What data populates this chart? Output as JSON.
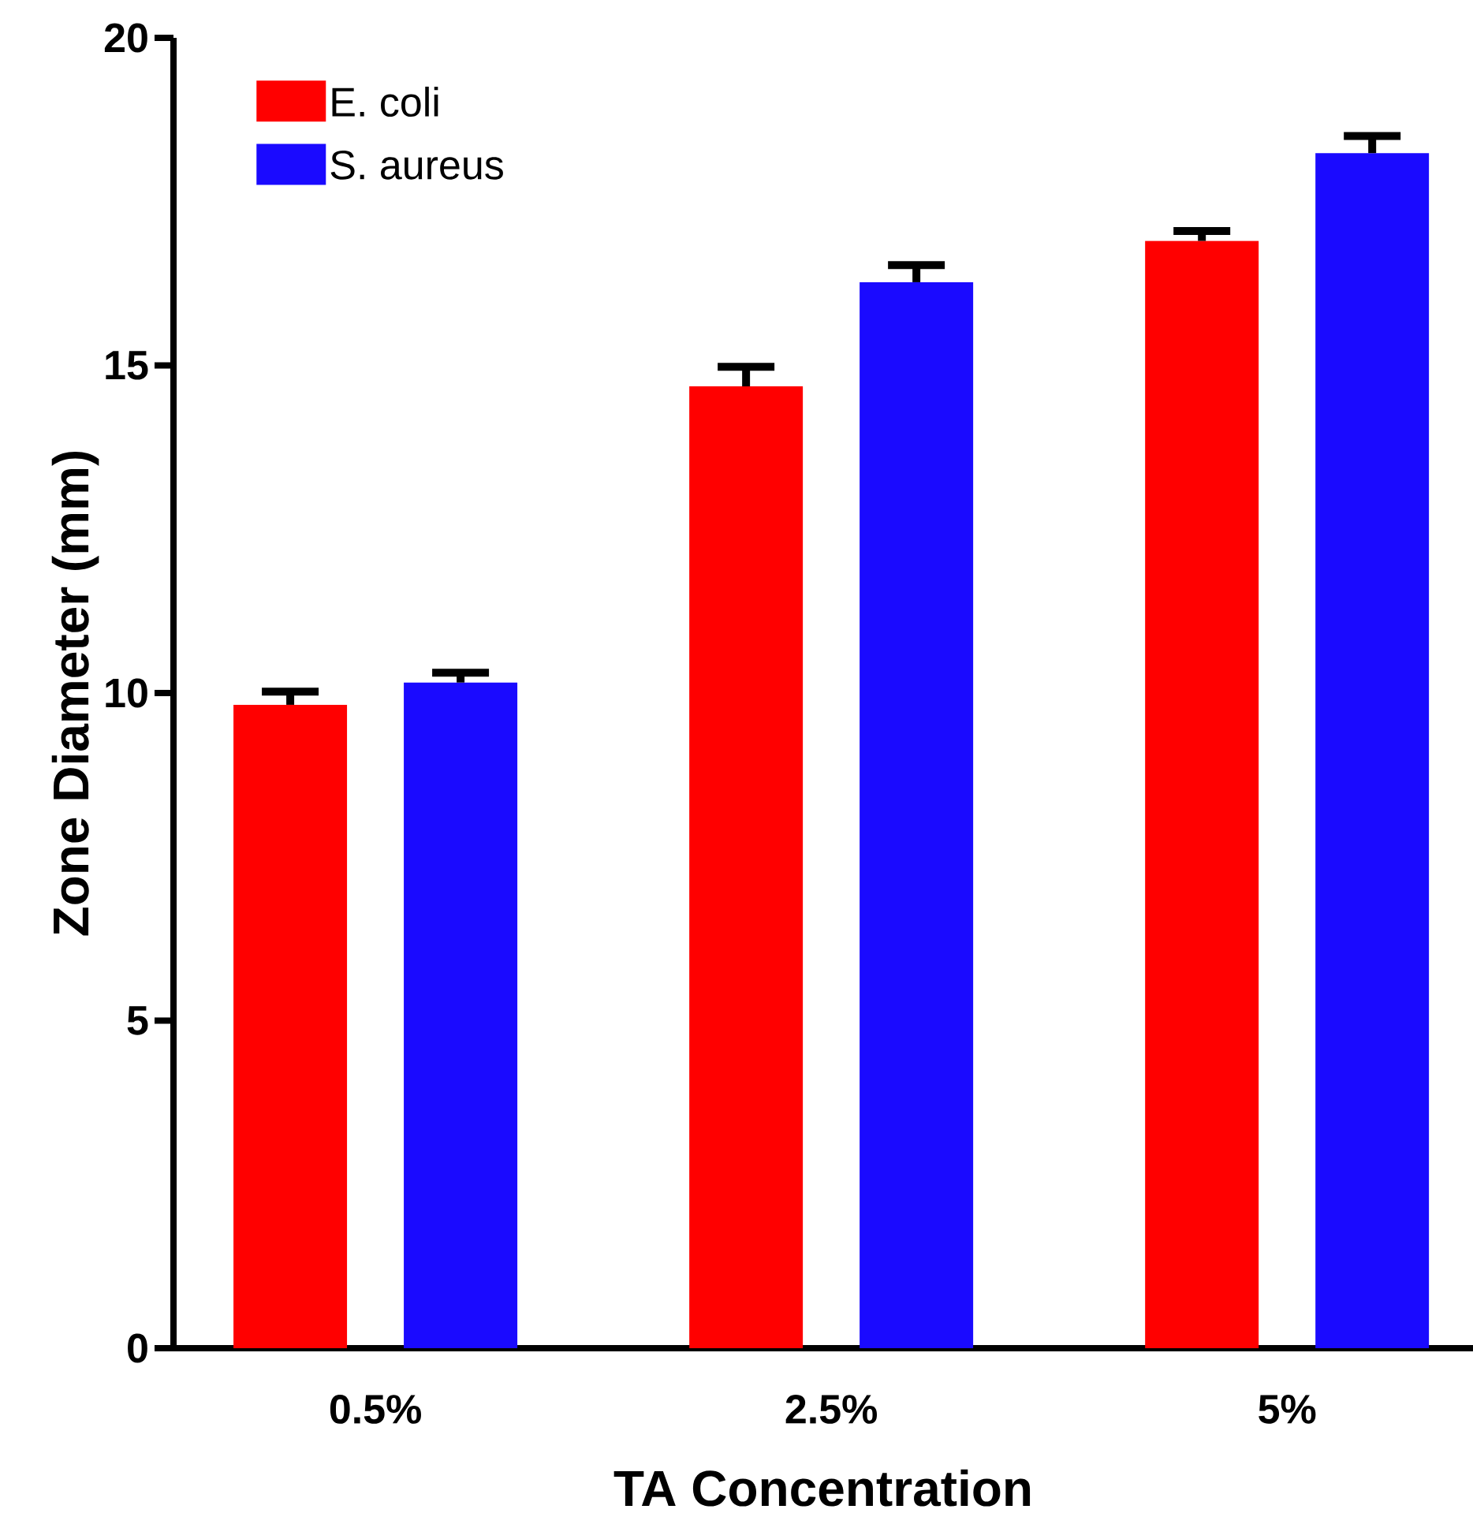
{
  "chart_data": {
    "type": "bar",
    "xlabel": "TA Concentration",
    "ylabel": "Zone Diameter (mm)",
    "categories": [
      "0.5%",
      "2.5%",
      "5%"
    ],
    "series": [
      {
        "name": "E. coli",
        "color": "#ff0000",
        "values": [
          9.82,
          14.68,
          16.9
        ],
        "errors": [
          [
            9.82,
            10.02
          ],
          [
            14.68,
            14.98
          ],
          [
            16.9,
            17.05
          ]
        ]
      },
      {
        "name": "S. aureus",
        "color": "#1a0aff",
        "values": [
          10.16,
          16.27,
          18.24
        ],
        "errors": [
          [
            10.16,
            10.31
          ],
          [
            16.27,
            16.53
          ],
          [
            18.24,
            18.5
          ]
        ]
      }
    ],
    "ylim": [
      0,
      20
    ],
    "yticks": [
      0,
      5,
      10,
      15,
      20
    ],
    "grid": false,
    "legend": "top left"
  }
}
